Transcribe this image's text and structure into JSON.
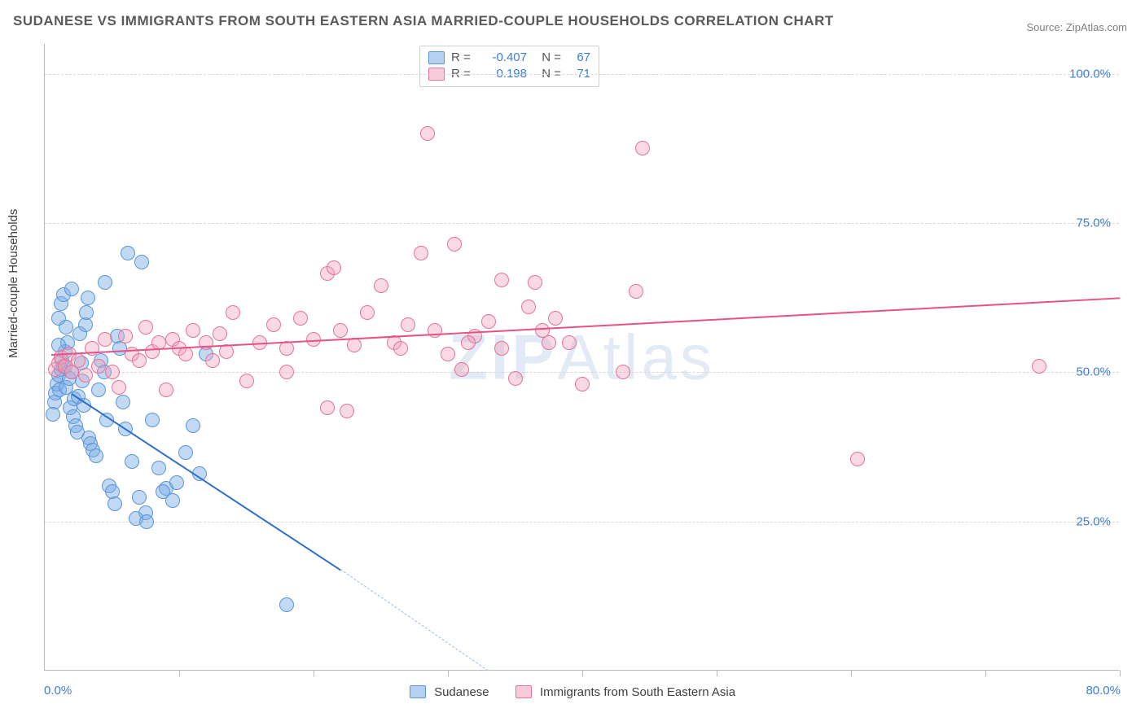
{
  "header": {
    "title": "SUDANESE VS IMMIGRANTS FROM SOUTH EASTERN ASIA MARRIED-COUPLE HOUSEHOLDS CORRELATION CHART",
    "source": "Source: ZipAtlas.com"
  },
  "watermark": "ZIPAtlas",
  "chart": {
    "type": "scatter",
    "ylabel": "Married-couple Households",
    "background_color": "#ffffff",
    "grid_color": "#d8d8d8",
    "axis_color": "#b8b8b8",
    "tick_label_color": "#3b7dd8",
    "tick_fontsize": 15,
    "label_fontsize": 15,
    "xlim": [
      0,
      80
    ],
    "ylim": [
      0,
      105
    ],
    "xticks": [
      0,
      10,
      20,
      30,
      40,
      50,
      60,
      70,
      80
    ],
    "xtick_labels": {
      "min": "0.0%",
      "max": "80.0%"
    },
    "yticks": [
      25,
      50,
      75,
      100
    ],
    "ytick_labels": [
      "25.0%",
      "50.0%",
      "75.0%",
      "100.0%"
    ],
    "marker_radius": 9,
    "series": [
      {
        "name": "Sudanese",
        "color_fill": "rgba(120,170,230,0.45)",
        "color_stroke": "#5a96d6",
        "stats": {
          "R_label": "R =",
          "R": "-0.407",
          "N_label": "N =",
          "N": "67"
        },
        "trend": {
          "solid": {
            "x1": 2.0,
            "y1": 46.5,
            "x2": 22.0,
            "y2": 17.0
          },
          "dashed": {
            "x1": 22.0,
            "y1": 17.0,
            "x2": 33.0,
            "y2": 0.0
          },
          "color": "#2d6fc9",
          "width": 2
        },
        "points": [
          [
            0.7,
            45.0
          ],
          [
            0.8,
            46.5
          ],
          [
            0.9,
            48.0
          ],
          [
            1.0,
            49.5
          ],
          [
            1.1,
            47.0
          ],
          [
            1.2,
            50.5
          ],
          [
            1.3,
            52.0
          ],
          [
            1.4,
            51.0
          ],
          [
            1.5,
            53.5
          ],
          [
            1.6,
            47.5
          ],
          [
            1.7,
            55.0
          ],
          [
            1.8,
            49.0
          ],
          [
            1.9,
            44.0
          ],
          [
            2.0,
            50.0
          ],
          [
            2.1,
            42.5
          ],
          [
            0.6,
            43.0
          ],
          [
            2.2,
            45.5
          ],
          [
            2.3,
            41.0
          ],
          [
            2.4,
            40.0
          ],
          [
            2.5,
            46.0
          ],
          [
            2.6,
            56.5
          ],
          [
            2.7,
            51.5
          ],
          [
            2.8,
            48.5
          ],
          [
            2.9,
            44.5
          ],
          [
            3.0,
            58.0
          ],
          [
            3.1,
            60.0
          ],
          [
            1.0,
            59.0
          ],
          [
            1.2,
            61.5
          ],
          [
            1.4,
            63.0
          ],
          [
            3.3,
            39.0
          ],
          [
            3.4,
            38.0
          ],
          [
            3.6,
            37.0
          ],
          [
            3.8,
            36.0
          ],
          [
            4.0,
            47.0
          ],
          [
            4.2,
            52.0
          ],
          [
            4.4,
            50.0
          ],
          [
            4.6,
            42.0
          ],
          [
            4.8,
            31.0
          ],
          [
            5.0,
            30.0
          ],
          [
            5.2,
            28.0
          ],
          [
            5.4,
            56.0
          ],
          [
            5.6,
            54.0
          ],
          [
            5.8,
            45.0
          ],
          [
            6.0,
            40.5
          ],
          [
            6.5,
            35.0
          ],
          [
            7.0,
            29.0
          ],
          [
            7.5,
            26.5
          ],
          [
            7.2,
            68.5
          ],
          [
            3.2,
            62.5
          ],
          [
            6.2,
            70.0
          ],
          [
            8.0,
            42.0
          ],
          [
            8.5,
            34.0
          ],
          [
            9.0,
            30.5
          ],
          [
            9.5,
            28.5
          ],
          [
            10.5,
            36.5
          ],
          [
            11.0,
            41.0
          ],
          [
            11.5,
            33.0
          ],
          [
            12.0,
            53.0
          ],
          [
            6.8,
            25.5
          ],
          [
            7.6,
            25.0
          ],
          [
            18.0,
            11.0
          ],
          [
            8.8,
            30.0
          ],
          [
            9.8,
            31.5
          ],
          [
            4.5,
            65.0
          ],
          [
            2.0,
            64.0
          ],
          [
            1.6,
            57.5
          ],
          [
            1.0,
            54.5
          ]
        ]
      },
      {
        "name": "Immigants from South Eastern Asia",
        "display_name": "Immigrants from South Eastern Asia",
        "color_fill": "rgba(240,160,185,0.40)",
        "color_stroke": "#e57399",
        "stats": {
          "R_label": "R =",
          "R": "0.198",
          "N_label": "N =",
          "N": "71"
        },
        "trend": {
          "solid": {
            "x1": 0.5,
            "y1": 53.0,
            "x2": 80.0,
            "y2": 62.5
          },
          "color": "#e65288",
          "width": 2
        },
        "points": [
          [
            0.8,
            50.5
          ],
          [
            1.0,
            51.5
          ],
          [
            1.2,
            52.5
          ],
          [
            1.5,
            51.0
          ],
          [
            1.8,
            53.0
          ],
          [
            2.0,
            50.0
          ],
          [
            2.5,
            52.0
          ],
          [
            3.0,
            49.5
          ],
          [
            3.5,
            54.0
          ],
          [
            4.0,
            51.0
          ],
          [
            4.5,
            55.5
          ],
          [
            5.0,
            50.0
          ],
          [
            5.5,
            47.5
          ],
          [
            6.0,
            56.0
          ],
          [
            6.5,
            53.0
          ],
          [
            7.0,
            52.0
          ],
          [
            7.5,
            57.5
          ],
          [
            8.0,
            53.5
          ],
          [
            8.5,
            55.0
          ],
          [
            9.0,
            47.0
          ],
          [
            9.5,
            55.5
          ],
          [
            10.0,
            54.0
          ],
          [
            10.5,
            53.0
          ],
          [
            11.0,
            57.0
          ],
          [
            12.0,
            55.0
          ],
          [
            12.5,
            52.0
          ],
          [
            13.0,
            56.5
          ],
          [
            14.0,
            60.0
          ],
          [
            15.0,
            48.5
          ],
          [
            16.0,
            55.0
          ],
          [
            17.0,
            58.0
          ],
          [
            18.0,
            54.0
          ],
          [
            19.0,
            59.0
          ],
          [
            20.0,
            55.5
          ],
          [
            21.0,
            66.5
          ],
          [
            21.5,
            67.5
          ],
          [
            21.0,
            44.0
          ],
          [
            22.0,
            57.0
          ],
          [
            23.0,
            54.5
          ],
          [
            24.0,
            60.0
          ],
          [
            25.0,
            64.5
          ],
          [
            26.0,
            55.0
          ],
          [
            27.0,
            58.0
          ],
          [
            28.0,
            70.0
          ],
          [
            28.5,
            90.0
          ],
          [
            29.0,
            57.0
          ],
          [
            30.0,
            53.0
          ],
          [
            30.5,
            71.5
          ],
          [
            31.0,
            50.5
          ],
          [
            32.0,
            56.0
          ],
          [
            33.0,
            58.5
          ],
          [
            34.0,
            54.0
          ],
          [
            35.0,
            49.0
          ],
          [
            36.0,
            61.0
          ],
          [
            36.5,
            65.0
          ],
          [
            37.0,
            57.0
          ],
          [
            38.0,
            59.0
          ],
          [
            39.0,
            55.0
          ],
          [
            43.0,
            50.0
          ],
          [
            44.0,
            63.5
          ],
          [
            44.5,
            87.5
          ],
          [
            34.0,
            65.5
          ],
          [
            40.0,
            48.0
          ],
          [
            60.5,
            35.5
          ],
          [
            74.0,
            51.0
          ],
          [
            18.0,
            50.0
          ],
          [
            13.5,
            53.5
          ],
          [
            22.5,
            43.5
          ],
          [
            26.5,
            54.0
          ],
          [
            37.5,
            55.0
          ],
          [
            31.5,
            55.0
          ]
        ]
      }
    ]
  },
  "bottom_legend": {
    "items": [
      "Sudanese",
      "Immigrants from South Eastern Asia"
    ]
  }
}
